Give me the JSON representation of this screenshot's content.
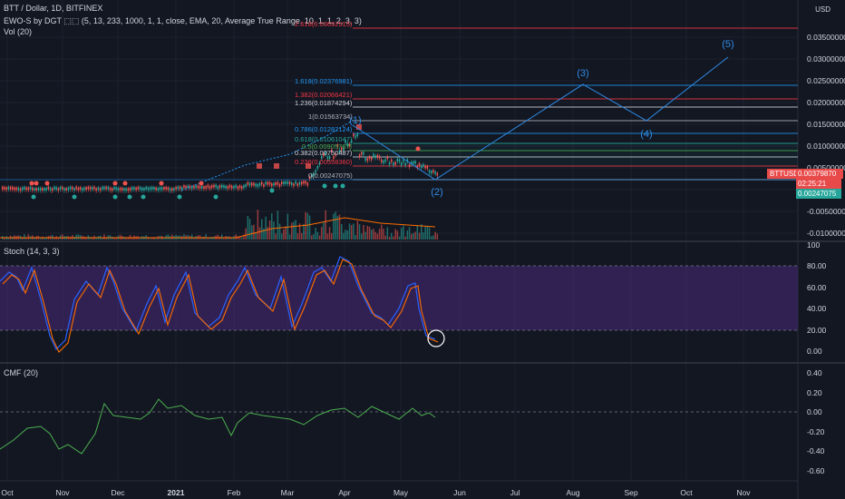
{
  "header": {
    "symbol_line": "BTT / Dollar, 1D, BITFINEX",
    "indicator_ewo": "EWO-S by DGT ⬚⬚ (5, 13, 233, 1000, 1, 1, close, EMA, 20, Average True Range, 10, 1, 1, 2, 3, 3)",
    "indicator_vol": "Vol (20)"
  },
  "price_axis": {
    "currency": "USD",
    "ticks": [
      "0.03500000",
      "0.03000000",
      "0.02500000",
      "0.02000000",
      "0.01500000",
      "0.01000000",
      "0.00500000",
      "-0.00500000",
      "-0.01000000"
    ]
  },
  "price_tags": {
    "symbol": "BTTUSD",
    "price": "0.00379870",
    "timer": "02:25:21",
    "other": "0.00247075"
  },
  "fib_levels": [
    {
      "label": "2.618(0.03692915)",
      "color": "#f23645"
    },
    {
      "label": "1.618(0.02376981)",
      "color": "#2196f3"
    },
    {
      "label": "1.382(0.02066421)",
      "color": "#f23645"
    },
    {
      "label": "1.236(0.01874294)",
      "color": "#d1d4dc"
    },
    {
      "label": "1(0.01563734)",
      "color": "#b2b5be"
    },
    {
      "label": "0.786(0.01282124)",
      "color": "#2196f3"
    },
    {
      "label": "0.618(0.01061047)",
      "color": "#26a69a"
    },
    {
      "label": "0.5(0.00905767)",
      "color": "#4caf50"
    },
    {
      "label": "0.382(0.00750487)",
      "color": "#d1d4dc"
    },
    {
      "label": "0.236(0.00558360)",
      "color": "#f23645"
    },
    {
      "label": "0(0.00247075)",
      "color": "#b2b5be"
    }
  ],
  "waves": [
    "(1)",
    "(2)",
    "(3)",
    "(4)",
    "(5)"
  ],
  "stoch": {
    "title": "Stoch (14, 3, 3)",
    "ticks": [
      "100",
      "80.00",
      "60.00",
      "40.00",
      "20.00",
      "0.00"
    ]
  },
  "cmf": {
    "title": "CMF (20)",
    "ticks": [
      "0.40",
      "0.20",
      "0.00",
      "-0.20",
      "-0.40",
      "-0.60"
    ]
  },
  "time_axis": [
    "Oct",
    "Nov",
    "Dec",
    "2021",
    "Feb",
    "Mar",
    "Apr",
    "May",
    "Jun",
    "Jul",
    "Aug",
    "Sep",
    "Oct",
    "Nov"
  ],
  "colors": {
    "background": "#131722",
    "grid": "#1e222d",
    "up": "#26a69a",
    "down": "#ef5350",
    "stoch_k": "#2962ff",
    "stoch_d": "#ff6d00",
    "stoch_fill": "#4a2a7a",
    "cmf": "#4caf50",
    "wave": "#2e8be6"
  }
}
